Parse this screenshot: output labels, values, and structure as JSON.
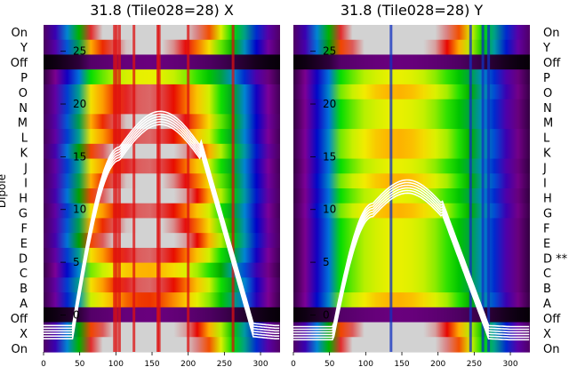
{
  "figure": {
    "ylabel": "Dipole"
  },
  "row_labels_left": [
    "On",
    "Y",
    "Off",
    "P",
    "O",
    "N",
    "M",
    "L",
    "K",
    "J",
    "I",
    "H",
    "G",
    "F",
    "E",
    "D",
    "C",
    "B",
    "A",
    "Off",
    "X",
    "On"
  ],
  "row_labels_right": [
    "On",
    "Y",
    "Off",
    "P",
    "O",
    "N",
    "M",
    "L",
    "K",
    "J",
    "I",
    "H",
    "G",
    "F",
    "E",
    "D **",
    "C",
    "B",
    "A",
    "Off",
    "X",
    "On"
  ],
  "colors": {
    "trace": "#ffffff",
    "background": "#ffffff"
  },
  "chart_data": [
    {
      "type": "heatmap",
      "title": "31.8 (Tile028=28) X",
      "xlim": [
        0,
        327
      ],
      "ylim": [
        -3.5,
        27.5
      ],
      "xticks": [
        0,
        50,
        100,
        150,
        200,
        250,
        300
      ],
      "yticks": [
        0,
        5,
        10,
        15,
        20,
        25
      ],
      "row_levels": [
        0.75,
        0.65,
        0.05,
        0.45,
        0.6,
        0.6,
        0.65,
        0.6,
        0.7,
        0.6,
        0.65,
        0.7,
        0.6,
        0.65,
        0.7,
        0.6,
        0.5,
        0.6,
        0.55,
        0.05,
        0.7,
        0.75
      ],
      "spikes": [
        98,
        101,
        105,
        125,
        158,
        160,
        200,
        262
      ],
      "traces": {
        "rise_start": 40,
        "rise_end": 105,
        "peak_x": 175,
        "peak_y": 18.8,
        "fall_start": 218,
        "fall_end": 290,
        "floor": -1.3,
        "end": -1.5,
        "count": 6
      }
    },
    {
      "type": "heatmap",
      "title": "31.8 (Tile028=28) Y",
      "xlim": [
        0,
        327
      ],
      "ylim": [
        -3.5,
        27.5
      ],
      "xticks": [
        0,
        50,
        100,
        150,
        200,
        250,
        300
      ],
      "yticks": [
        0,
        5,
        10,
        15,
        20,
        25
      ],
      "row_levels": [
        0.75,
        0.7,
        0.05,
        0.45,
        0.5,
        0.45,
        0.45,
        0.5,
        0.5,
        0.45,
        0.5,
        0.45,
        0.5,
        0.45,
        0.45,
        0.45,
        0.45,
        0.45,
        0.5,
        0.05,
        0.7,
        0.75
      ],
      "spikes": [
        135,
        245,
        262,
        270
      ],
      "traces": {
        "rise_start": 55,
        "rise_end": 110,
        "peak_x": 170,
        "peak_y": 12.3,
        "fall_start": 205,
        "fall_end": 270,
        "floor": -1.5,
        "end": -1.6,
        "count": 6
      }
    }
  ]
}
